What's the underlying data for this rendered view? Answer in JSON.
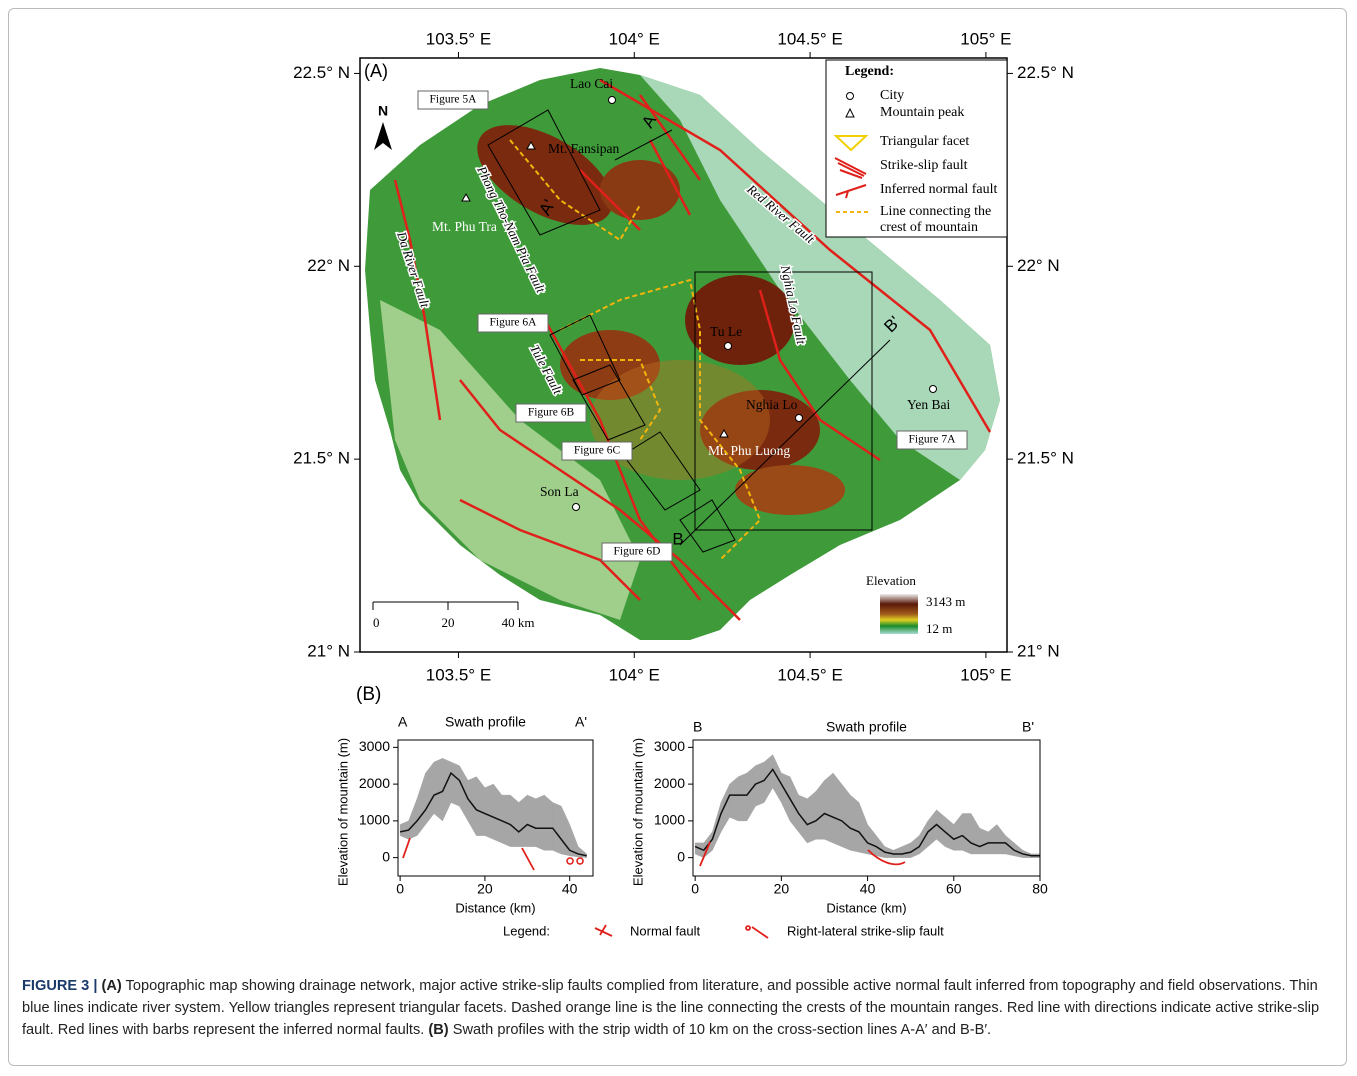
{
  "figure": {
    "map": {
      "panel_label": "(A)",
      "north": "N",
      "lonlim": [
        103.22,
        105.06
      ],
      "latlim": [
        21.0,
        22.54
      ],
      "lonticks": [
        {
          "value": 103.5,
          "label": "103.5° E"
        },
        {
          "value": 104,
          "label": "104° E"
        },
        {
          "value": 104.5,
          "label": "104.5° E"
        },
        {
          "value": 105,
          "label": "105° E"
        }
      ],
      "latticks": [
        {
          "value": 22.5,
          "label": "22.5° N"
        },
        {
          "value": 22,
          "label": "22° N"
        },
        {
          "value": 21.5,
          "label": "21.5° N"
        },
        {
          "value": 21,
          "label": "21° N"
        }
      ],
      "places": [
        "Lao Cai",
        "Mt. Fansipan",
        "Mt. Phu Tra",
        "Tu Le",
        "Nghia Lo",
        "Yen Bai",
        "Mt. Phu Luong",
        "Son La"
      ],
      "faults": [
        "Red River Fault",
        "Phong Tho-Nam Pia Fault",
        "Da River Fault",
        "Tule Fault",
        "Nghia Lo Fault"
      ],
      "figure_refs": [
        "Figure 5A",
        "Figure 6A",
        "Figure 6B",
        "Figure 6C",
        "Figure 6D",
        "Figure 7A"
      ],
      "section_ends": [
        "A",
        "A'",
        "B",
        "B'"
      ],
      "legend": {
        "title": "Legend:",
        "items": [
          "City",
          "Mountain peak",
          "Triangular facet",
          "Strike-slip fault",
          "Inferred normal fault",
          "Line connecting the",
          "crest of mountain"
        ]
      },
      "scale_bar": [
        0,
        20,
        {
          "value": 40,
          "label": "40 km"
        }
      ],
      "elevation": {
        "title": "Elevation",
        "max_label": "3143 m",
        "min_label": "12 m"
      }
    },
    "profiles_label": "(B)",
    "profile_legend": {
      "title": "Legend:",
      "items": [
        "Normal fault",
        "Right-lateral strike-slip fault"
      ]
    },
    "caption": [
      {
        "text": "FIGURE 3 | ",
        "bold": true
      },
      {
        "text": "(A)",
        "bold": true
      },
      {
        "text": " Topographic map showing drainage network, major active strike-slip faults complied from literature, and possible active normal fault inferred from topography and field observations. Thin blue lines indicate river system. Yellow triangles represent triangular facets. Dashed orange line is the line connecting the crests of the mountain ranges. Red line with directions indicate active strike-slip fault. Red lines with barbs represent the inferred normal faults. ",
        "bold": false
      },
      {
        "text": "(B)",
        "bold": true
      },
      {
        "text": " Swath profiles with the strip width of 10 km on the cross-section lines A-A′ and B-B′.",
        "bold": false
      }
    ]
  },
  "chart_data": [
    {
      "type": "line",
      "title": "Swath profile",
      "start_label": "A",
      "end_label": "A'",
      "xlabel": "Distance (km)",
      "ylabel": "Elevation of mountain (m)",
      "x": [
        0,
        2,
        4,
        6,
        8,
        10,
        12,
        14,
        16,
        18,
        20,
        22,
        24,
        26,
        28,
        30,
        32,
        34,
        36,
        38,
        40,
        42,
        44
      ],
      "xlim": [
        -0.5,
        45.5
      ],
      "ylim": [
        -500,
        3200
      ],
      "xticks": [
        0,
        20,
        40
      ],
      "yticks": [
        0,
        1000,
        2000,
        3000
      ],
      "series": [
        {
          "color": "#111111",
          "values": [
            700,
            750,
            1000,
            1300,
            1700,
            1800,
            2300,
            2100,
            1600,
            1300,
            1200,
            1100,
            1000,
            900,
            700,
            900,
            800,
            800,
            800,
            500,
            200,
            100,
            50
          ]
        }
      ],
      "band": {
        "color": "#a6a6a6",
        "upper": [
          900,
          1000,
          1600,
          2300,
          2600,
          2700,
          2600,
          2500,
          2100,
          2200,
          1900,
          2000,
          1700,
          1700,
          1500,
          1700,
          1600,
          1700,
          1500,
          1400,
          900,
          300,
          100
        ],
        "lower": [
          600,
          500,
          600,
          900,
          1200,
          1000,
          1500,
          1400,
          1000,
          600,
          600,
          500,
          400,
          300,
          300,
          300,
          300,
          200,
          200,
          100,
          50,
          20,
          0
        ]
      }
    },
    {
      "type": "line",
      "title": "Swath profile",
      "start_label": "B",
      "end_label": "B'",
      "xlabel": "Distance (km)",
      "ylabel": "Elevation of mountain (m)",
      "x": [
        0,
        2,
        4,
        6,
        8,
        10,
        12,
        14,
        16,
        18,
        20,
        22,
        24,
        26,
        28,
        30,
        32,
        34,
        36,
        38,
        40,
        42,
        44,
        46,
        48,
        50,
        52,
        54,
        56,
        58,
        60,
        62,
        64,
        66,
        68,
        70,
        72,
        74,
        76,
        78,
        80
      ],
      "xlim": [
        -0.5,
        80
      ],
      "ylim": [
        -500,
        3200
      ],
      "xticks": [
        0,
        20,
        40,
        60,
        80
      ],
      "yticks": [
        0,
        1000,
        2000,
        3000
      ],
      "series": [
        {
          "color": "#111111",
          "values": [
            300,
            200,
            500,
            1200,
            1700,
            1700,
            1700,
            2000,
            2100,
            2400,
            2000,
            1600,
            1200,
            900,
            1000,
            1200,
            1100,
            1000,
            800,
            700,
            400,
            300,
            150,
            100,
            100,
            150,
            300,
            700,
            900,
            700,
            500,
            600,
            400,
            300,
            400,
            400,
            400,
            200,
            100,
            50,
            50
          ]
        }
      ],
      "band": {
        "color": "#a6a6a6",
        "upper": [
          400,
          400,
          700,
          1500,
          2000,
          2200,
          2300,
          2500,
          2600,
          2800,
          2300,
          2200,
          1700,
          1600,
          1800,
          2100,
          2300,
          2000,
          1700,
          1500,
          900,
          600,
          300,
          200,
          300,
          400,
          600,
          1000,
          1300,
          1100,
          900,
          1200,
          1200,
          800,
          700,
          900,
          600,
          400,
          200,
          100,
          100
        ],
        "lower": [
          100,
          0,
          200,
          700,
          1100,
          1000,
          1000,
          1400,
          1500,
          1900,
          1500,
          1000,
          700,
          400,
          500,
          500,
          400,
          300,
          200,
          150,
          100,
          50,
          0,
          0,
          0,
          0,
          100,
          300,
          500,
          300,
          200,
          200,
          100,
          100,
          100,
          100,
          100,
          50,
          0,
          0,
          0
        ]
      }
    }
  ]
}
